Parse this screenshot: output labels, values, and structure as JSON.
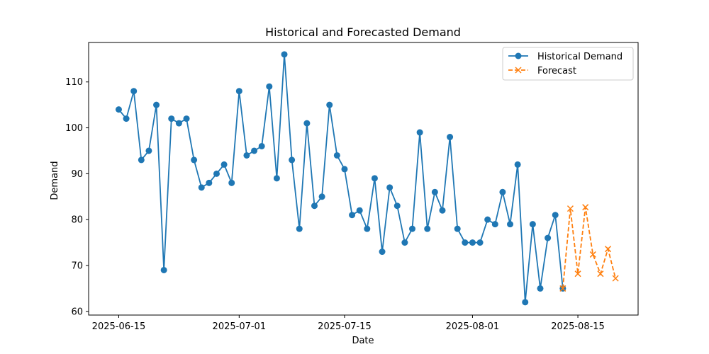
{
  "chart_data": {
    "type": "line",
    "title": "Historical and Forecasted Demand",
    "xlabel": "Date",
    "ylabel": "Demand",
    "x_ticks": [
      "2025-06-15",
      "2025-07-01",
      "2025-07-15",
      "2025-08-01",
      "2025-08-15"
    ],
    "y_ticks": [
      60,
      70,
      80,
      90,
      100,
      110
    ],
    "xlim": [
      "2025-06-11",
      "2025-08-23"
    ],
    "ylim": [
      59.2,
      118.6
    ],
    "grid": false,
    "legend_position": "top-right",
    "series": [
      {
        "name": "Historical Demand",
        "color": "#1f77b4",
        "marker": "circle",
        "line_style": "solid",
        "x": [
          "2025-06-15",
          "2025-06-16",
          "2025-06-17",
          "2025-06-18",
          "2025-06-19",
          "2025-06-20",
          "2025-06-21",
          "2025-06-22",
          "2025-06-23",
          "2025-06-24",
          "2025-06-25",
          "2025-06-26",
          "2025-06-27",
          "2025-06-28",
          "2025-06-29",
          "2025-06-30",
          "2025-07-01",
          "2025-07-02",
          "2025-07-03",
          "2025-07-04",
          "2025-07-05",
          "2025-07-06",
          "2025-07-07",
          "2025-07-08",
          "2025-07-09",
          "2025-07-10",
          "2025-07-11",
          "2025-07-12",
          "2025-07-13",
          "2025-07-14",
          "2025-07-15",
          "2025-07-16",
          "2025-07-17",
          "2025-07-18",
          "2025-07-19",
          "2025-07-20",
          "2025-07-21",
          "2025-07-22",
          "2025-07-23",
          "2025-07-24",
          "2025-07-25",
          "2025-07-26",
          "2025-07-27",
          "2025-07-28",
          "2025-07-29",
          "2025-07-30",
          "2025-07-31",
          "2025-08-01",
          "2025-08-02",
          "2025-08-03",
          "2025-08-04",
          "2025-08-05",
          "2025-08-06",
          "2025-08-07",
          "2025-08-08",
          "2025-08-09",
          "2025-08-10",
          "2025-08-11",
          "2025-08-12",
          "2025-08-13"
        ],
        "values": [
          104,
          102,
          108,
          93,
          95,
          105,
          69,
          102,
          101,
          102,
          93,
          87,
          88,
          90,
          92,
          88,
          108,
          94,
          95,
          96,
          109,
          89,
          116,
          93,
          78,
          101,
          83,
          85,
          105,
          94,
          91,
          81,
          82,
          78,
          89,
          73,
          87,
          83,
          75,
          78,
          99,
          78,
          86,
          82,
          98,
          78,
          75,
          75,
          75,
          80,
          79,
          86,
          79,
          92,
          62,
          79,
          65,
          76,
          81,
          65
        ]
      },
      {
        "name": "Forecast",
        "color": "#ff7f0e",
        "marker": "x",
        "line_style": "dashed",
        "x": [
          "2025-08-13",
          "2025-08-14",
          "2025-08-15",
          "2025-08-16",
          "2025-08-17",
          "2025-08-18",
          "2025-08-19",
          "2025-08-20"
        ],
        "values": [
          65,
          82.4,
          68.2,
          82.7,
          72.4,
          68.2,
          73.6,
          67.2
        ]
      }
    ]
  }
}
